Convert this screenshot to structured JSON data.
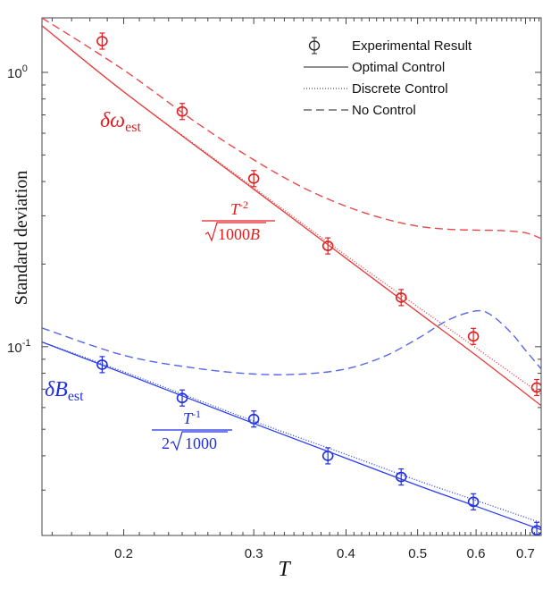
{
  "chart_data": {
    "type": "line",
    "xlabel": "T",
    "ylabel": "Standard deviation",
    "xscale": "log",
    "yscale": "log",
    "xlim": [
      0.155,
      0.735
    ],
    "ylim": [
      0.0205,
      1.58
    ],
    "xticks": [
      0.2,
      0.3,
      0.4,
      0.5,
      0.6,
      0.7
    ],
    "xtick_labels": [
      "0.2",
      "0.3",
      "0.4",
      "0.5",
      "0.6",
      "0.7"
    ],
    "ytick_labels": [
      {
        "value": 1.0,
        "base": "10",
        "exp": "0"
      },
      {
        "value": 0.1,
        "base": "10",
        "exp": "-1"
      }
    ],
    "grid": false,
    "legend": {
      "position": "top-right",
      "entries": [
        {
          "label": "Experimental Result",
          "style": "errorbar-marker"
        },
        {
          "label": "Optimal Control",
          "style": "solid"
        },
        {
          "label": "Discrete Control",
          "style": "dotted"
        },
        {
          "label": "No Control",
          "style": "dashed"
        }
      ]
    },
    "annotations": {
      "omega_label": {
        "symbol": "δω",
        "sub": "est",
        "color": "#e02020"
      },
      "omega_formula": {
        "num": "T",
        "num_exp": "-2",
        "den_sqrt": "1000",
        "den_var": "B",
        "color": "#e02020"
      },
      "b_label": {
        "symbol": "δB",
        "sub": "est",
        "color": "#1f2fe0"
      },
      "b_formula": {
        "num": "T",
        "num_exp": "-1",
        "den_coef": "2",
        "den_sqrt": "1000",
        "color": "#1f2fe0"
      }
    },
    "series": [
      {
        "group": "omega",
        "style": "errorbar",
        "color": "#e02020",
        "x": [
          0.187,
          0.24,
          0.3,
          0.378,
          0.475,
          0.595,
          0.725
        ],
        "y": [
          1.3,
          0.72,
          0.41,
          0.233,
          0.151,
          0.109,
          0.071
        ]
      },
      {
        "group": "omega",
        "style": "solid",
        "color": "#e63a3a",
        "x": [
          0.155,
          0.2,
          0.3,
          0.4,
          0.5,
          0.6,
          0.735
        ],
        "y": [
          1.48,
          0.85,
          0.375,
          0.21,
          0.134,
          0.093,
          0.061
        ]
      },
      {
        "group": "omega",
        "style": "dotted",
        "color": "#e63a3a",
        "x": [
          0.155,
          0.2,
          0.3,
          0.4,
          0.5,
          0.6,
          0.735
        ],
        "y": [
          1.48,
          0.85,
          0.38,
          0.215,
          0.14,
          0.099,
          0.067
        ]
      },
      {
        "group": "omega",
        "style": "dashed",
        "color": "#e84848",
        "x": [
          0.155,
          0.2,
          0.25,
          0.3,
          0.35,
          0.4,
          0.45,
          0.5,
          0.55,
          0.6,
          0.65,
          0.7,
          0.735
        ],
        "y": [
          1.58,
          1.02,
          0.66,
          0.48,
          0.38,
          0.325,
          0.293,
          0.275,
          0.268,
          0.266,
          0.265,
          0.26,
          0.248
        ]
      },
      {
        "group": "B",
        "style": "errorbar",
        "color": "#1f2fe0",
        "x": [
          0.187,
          0.24,
          0.3,
          0.378,
          0.475,
          0.595,
          0.725
        ],
        "y": [
          0.086,
          0.065,
          0.0545,
          0.04,
          0.0335,
          0.0272,
          0.0214
        ]
      },
      {
        "group": "B",
        "style": "solid",
        "color": "#2a3ef0",
        "x": [
          0.155,
          0.2,
          0.3,
          0.4,
          0.5,
          0.6,
          0.735
        ],
        "y": [
          0.104,
          0.08,
          0.0525,
          0.0392,
          0.0312,
          0.0262,
          0.0215
        ]
      },
      {
        "group": "B",
        "style": "dotted",
        "color": "#2a3ef0",
        "x": [
          0.155,
          0.2,
          0.3,
          0.4,
          0.5,
          0.6,
          0.735
        ],
        "y": [
          0.104,
          0.081,
          0.0535,
          0.0405,
          0.0325,
          0.0275,
          0.0228
        ]
      },
      {
        "group": "B",
        "style": "dashed",
        "color": "#5566e8",
        "x": [
          0.155,
          0.2,
          0.25,
          0.3,
          0.35,
          0.4,
          0.45,
          0.5,
          0.55,
          0.6,
          0.63,
          0.67,
          0.7,
          0.735
        ],
        "y": [
          0.117,
          0.093,
          0.0835,
          0.0795,
          0.0795,
          0.083,
          0.092,
          0.107,
          0.125,
          0.135,
          0.13,
          0.112,
          0.097,
          0.083
        ]
      }
    ]
  }
}
